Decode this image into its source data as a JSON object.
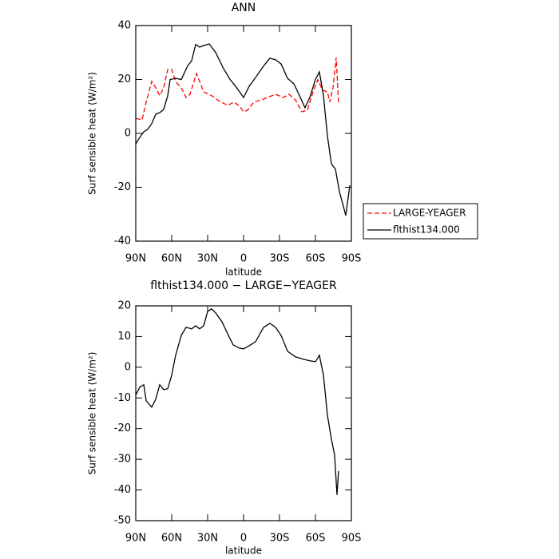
{
  "chart_data": [
    {
      "type": "line",
      "title": "ANN",
      "xlabel": "latitude",
      "ylabel": "Surf sensible heat (W/m²)",
      "xlim": [
        90,
        -90
      ],
      "xticks": [
        {
          "value": 90,
          "label": "90N"
        },
        {
          "value": 60,
          "label": "60N"
        },
        {
          "value": 30,
          "label": "30N"
        },
        0,
        {
          "value": -30,
          "label": "30S"
        },
        {
          "value": -60,
          "label": "60S"
        },
        {
          "value": -90,
          "label": "90S"
        }
      ],
      "ylim": [
        -40,
        40
      ],
      "yticks": [
        -40,
        -20,
        0,
        20,
        40
      ],
      "legend": "right",
      "series": [
        {
          "name": "LARGE-YEAGER",
          "color": "#ff0000",
          "dash": true,
          "x": [
            90,
            84.7,
            81.3,
            76.7,
            73.3,
            70,
            66.7,
            63.3,
            60,
            56.7,
            51.3,
            48,
            44.7,
            39.3,
            33.3,
            26.7,
            20,
            13.3,
            8,
            3.3,
            0,
            -3.3,
            -8.7,
            -16.7,
            -26.7,
            -33.3,
            -38,
            -43.3,
            -48.7,
            -53.3,
            -58,
            -62,
            -66,
            -70,
            -72,
            -74.7,
            -77.3,
            -79.3
          ],
          "values": [
            5.6,
            5,
            11.6,
            19.3,
            16.9,
            14,
            16.9,
            23.7,
            23.7,
            19.3,
            16.3,
            13.3,
            14.5,
            22.2,
            15.4,
            14,
            11.9,
            10.4,
            11.6,
            10.1,
            8,
            8.6,
            11.6,
            12.7,
            14.5,
            13.3,
            14.5,
            12.4,
            8,
            8.6,
            15.4,
            19.9,
            16,
            15.4,
            11.6,
            16.9,
            28.1,
            11.6
          ]
        },
        {
          "name": "flthist134.000",
          "color": "#000000",
          "dash": false,
          "x": [
            90,
            86.7,
            83.3,
            80,
            76.7,
            73.3,
            70,
            66.7,
            63.3,
            61.3,
            56.7,
            52,
            46.7,
            43.3,
            40,
            36.7,
            33.3,
            28.7,
            23.3,
            16.7,
            11.3,
            6.7,
            3.3,
            0,
            -4.7,
            -10,
            -16.7,
            -22,
            -26.7,
            -31.3,
            -36.7,
            -42,
            -46.7,
            -51.3,
            -55.3,
            -60,
            -63.3,
            -66.7,
            -70,
            -73.3,
            -76.7,
            -80,
            -83.3,
            -85.3,
            -88.7
          ],
          "values": [
            -3.9,
            -1.5,
            0.6,
            1.5,
            3.6,
            7.1,
            7.7,
            8.9,
            14,
            20,
            20.4,
            20,
            25,
            27,
            33,
            32,
            32.6,
            33.2,
            30,
            24,
            20,
            17.5,
            15.4,
            13.3,
            17.5,
            20.7,
            25,
            27.9,
            27.3,
            25.8,
            20.4,
            18.4,
            14,
            9.5,
            13.3,
            20,
            22.8,
            14,
            -0.9,
            -11.3,
            -13.3,
            -21.6,
            -27,
            -30.5,
            -19.3
          ]
        }
      ]
    },
    {
      "type": "line",
      "title": "flthist134.000 − LARGE−YEAGER",
      "xlabel": "latitude",
      "ylabel": "Surf sensible heat (W/m²)",
      "xlim": [
        90,
        -90
      ],
      "xticks": [
        {
          "value": 90,
          "label": "90N"
        },
        {
          "value": 60,
          "label": "60N"
        },
        {
          "value": 30,
          "label": "30N"
        },
        0,
        {
          "value": -30,
          "label": "30S"
        },
        {
          "value": -60,
          "label": "60S"
        },
        {
          "value": -90,
          "label": "90S"
        }
      ],
      "ylim": [
        -50,
        20
      ],
      "yticks": [
        -50,
        -40,
        -30,
        -20,
        -10,
        0,
        10,
        20
      ],
      "color": "#000000",
      "x": [
        90,
        86.7,
        83.3,
        81.3,
        76.7,
        73.3,
        70,
        66.7,
        63.3,
        60,
        56.7,
        52,
        48,
        43.3,
        40,
        36.7,
        33.3,
        30,
        26.7,
        23.3,
        18,
        13.3,
        8.7,
        3.3,
        0,
        -4.7,
        -10,
        -16.7,
        -22,
        -26.7,
        -31.3,
        -36.7,
        -43.3,
        -50,
        -55.3,
        -60,
        -63.3,
        -66.7,
        -70,
        -73.3,
        -76,
        -78,
        -79.3
      ],
      "values": [
        -9.1,
        -6.5,
        -5.7,
        -10.9,
        -13,
        -10.4,
        -5.7,
        -7.3,
        -7,
        -2.6,
        3.9,
        10.4,
        13,
        12.5,
        13.5,
        12.5,
        13.5,
        18.2,
        19,
        17.7,
        14.8,
        10.9,
        7.3,
        6.2,
        6,
        7,
        8.3,
        13,
        14.3,
        13,
        10.4,
        5.2,
        3.4,
        2.6,
        2.1,
        1.8,
        3.9,
        -2.6,
        -15.6,
        -23.4,
        -28.6,
        -41.6,
        -33.8
      ]
    }
  ]
}
